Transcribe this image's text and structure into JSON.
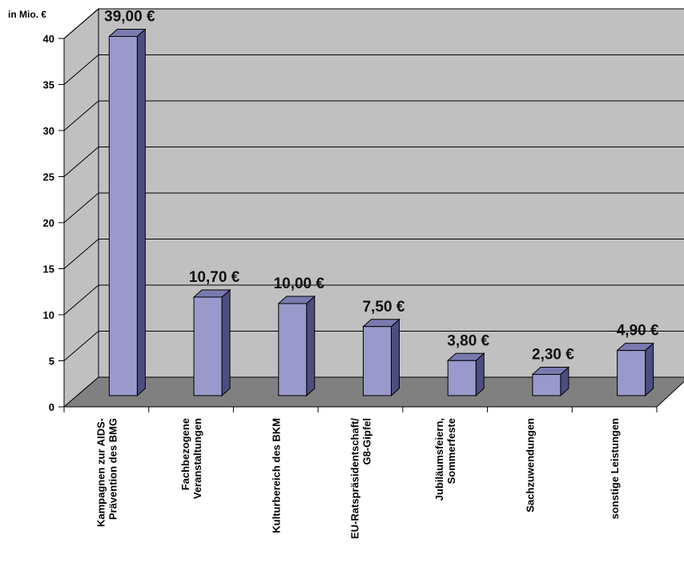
{
  "chart_data": {
    "type": "bar",
    "title": "",
    "xlabel": "",
    "ylabel": "in  Mio. €",
    "ylim": [
      0,
      40
    ],
    "yticks": [
      0,
      5,
      10,
      15,
      20,
      25,
      30,
      35,
      40
    ],
    "grid": true,
    "three_d": true,
    "categories": [
      [
        "Kampagnen zur AIDS-",
        "Prävention des BMG"
      ],
      [
        "Fachbezogene",
        "Veranstaltungen"
      ],
      [
        "Kulturbereich des BKM"
      ],
      [
        "EU-Ratspräsidentschaft/",
        "G8-Gipfel"
      ],
      [
        "Jubiläumsfeiern,",
        "Sommerfeste"
      ],
      [
        "Sachzuwendungen"
      ],
      [
        "sonstige Leistungen"
      ]
    ],
    "values": [
      39.0,
      10.7,
      10.0,
      7.5,
      3.8,
      2.3,
      4.9
    ],
    "value_labels": [
      "39,00 €",
      "10,70 €",
      "10,00 €",
      "7,50 €",
      "3,80 €",
      "2,30 €",
      "4,90 €"
    ],
    "colors": {
      "bar_front": "#9999cc",
      "bar_side": "#4d4d80",
      "bar_top": "#7a7ab0",
      "back_wall": "#c0c0c0",
      "floor": "#808080",
      "gridline": "#000000"
    }
  }
}
